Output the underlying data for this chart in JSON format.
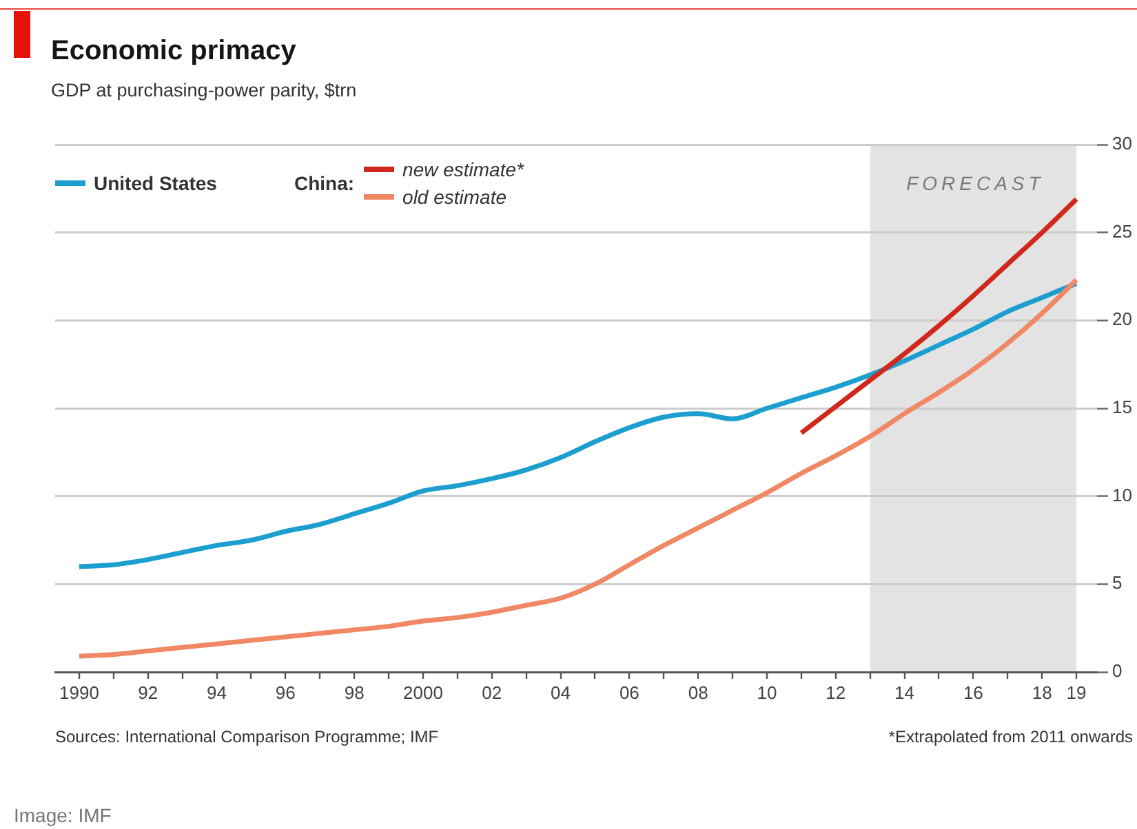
{
  "chart_data": {
    "type": "line",
    "title": "Economic primacy",
    "subtitle": "GDP at purchasing-power parity, $trn",
    "x": [
      1990,
      1991,
      1992,
      1993,
      1994,
      1995,
      1996,
      1997,
      1998,
      1999,
      2000,
      2001,
      2002,
      2003,
      2004,
      2005,
      2006,
      2007,
      2008,
      2009,
      2010,
      2011,
      2012,
      2013,
      2014,
      2015,
      2016,
      2017,
      2018,
      2019
    ],
    "series": [
      {
        "name": "United States",
        "color": "#1c9ecf",
        "values": [
          6.0,
          6.1,
          6.4,
          6.8,
          7.2,
          7.5,
          8.0,
          8.4,
          9.0,
          9.6,
          10.3,
          10.6,
          11.0,
          11.5,
          12.2,
          13.1,
          13.9,
          14.5,
          14.7,
          14.4,
          15.0,
          15.6,
          16.2,
          16.9,
          17.7,
          18.6,
          19.5,
          20.5,
          21.3,
          22.1
        ]
      },
      {
        "name": "new estimate*",
        "color": "#d0281c",
        "x": [
          2011,
          2012,
          2013,
          2014,
          2015,
          2016,
          2017,
          2018,
          2019
        ],
        "values": [
          13.6,
          15.1,
          16.6,
          18.1,
          19.7,
          21.4,
          23.2,
          25.0,
          26.9
        ]
      },
      {
        "name": "old estimate",
        "color": "#f08866",
        "values": [
          0.9,
          1.0,
          1.2,
          1.4,
          1.6,
          1.8,
          2.0,
          2.2,
          2.4,
          2.6,
          2.9,
          3.1,
          3.4,
          3.8,
          4.2,
          5.0,
          6.1,
          7.2,
          8.2,
          9.2,
          10.2,
          11.3,
          12.3,
          13.4,
          14.7,
          15.9,
          17.2,
          18.7,
          20.4,
          22.3
        ]
      }
    ],
    "legend_title": "China:",
    "legend": "top left",
    "grid": "y",
    "marker": "none",
    "line_style": "solid",
    "xlim": [
      1989.3,
      2019.6
    ],
    "xticks": [
      1990,
      {
        "value": 1991,
        "label": null
      },
      {
        "value": 1992,
        "label": "92"
      },
      {
        "value": 1993,
        "label": null
      },
      {
        "value": 1994,
        "label": "94"
      },
      {
        "value": 1995,
        "label": null
      },
      {
        "value": 1996,
        "label": "96"
      },
      {
        "value": 1997,
        "label": null
      },
      {
        "value": 1998,
        "label": "98"
      },
      {
        "value": 1999,
        "label": null
      },
      2000,
      {
        "value": 2001,
        "label": null
      },
      {
        "value": 2002,
        "label": "02"
      },
      {
        "value": 2003,
        "label": null
      },
      {
        "value": 2004,
        "label": "04"
      },
      {
        "value": 2005,
        "label": null
      },
      {
        "value": 2006,
        "label": "06"
      },
      {
        "value": 2007,
        "label": null
      },
      {
        "value": 2008,
        "label": "08"
      },
      {
        "value": 2009,
        "label": null
      },
      {
        "value": 2010,
        "label": "10"
      },
      {
        "value": 2011,
        "label": null
      },
      {
        "value": 2012,
        "label": "12"
      },
      {
        "value": 2013,
        "label": null
      },
      {
        "value": 2014,
        "label": "14"
      },
      {
        "value": 2015,
        "label": null
      },
      {
        "value": 2016,
        "label": "16"
      },
      {
        "value": 2017,
        "label": null
      },
      {
        "value": 2018,
        "label": "18"
      },
      {
        "value": 2019,
        "label": "19"
      }
    ],
    "ylim": [
      0,
      30
    ],
    "yticks": [
      0,
      5,
      10,
      15,
      20,
      25,
      30
    ],
    "bands": [
      {
        "axis": "x",
        "from": 2013,
        "to": 2019,
        "label": "FORECAST",
        "color": "#e3e3e3"
      }
    ],
    "annotations": [
      "Sources: International Comparison Programme; IMF",
      "*Extrapolated from 2011 onwards",
      "Image: IMF"
    ]
  }
}
